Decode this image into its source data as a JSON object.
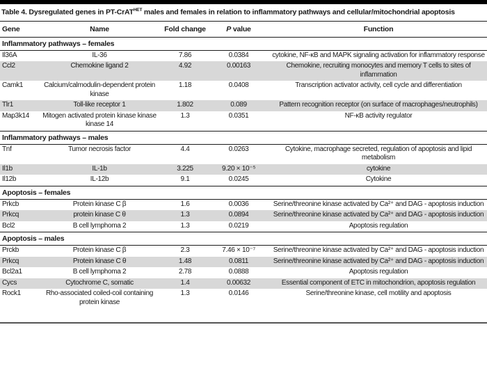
{
  "table": {
    "title": {
      "prefix": "Table 4. Dysregulated genes in PT-CrAT",
      "superscript": "HET",
      "suffix": " males and females in relation to inflammatory pathways and cellular/mitochondrial apoptosis"
    },
    "columns": {
      "gene": "Gene",
      "name": "Name",
      "fold": "Fold change",
      "p_italic": "P",
      "p_rest": " value",
      "function": "Function"
    },
    "colors": {
      "shaded_row": "#d8d8d8",
      "top_bar": "#000000",
      "rule": "#1a1a1a"
    },
    "sections": [
      {
        "label": "Inflammatory pathways – females",
        "rows": [
          {
            "gene": "Il36A",
            "name": "IL-36",
            "fold": "7.86",
            "p": "0.0384",
            "func": "cytokine, NF-κB and MAPK signaling activation for inflammatory response"
          },
          {
            "gene": "Ccl2",
            "name": "Chemokine ligand 2",
            "fold": "4.92",
            "p": "0.00163",
            "func": "Chemokine, recruiting monocytes and memory T cells to sites of inflammation"
          },
          {
            "gene": "Camk1",
            "name": "Calcium/calmodulin-dependent protein kinase",
            "fold": "1.18",
            "p": "0.0408",
            "func": "Transcription activator activity, cell cycle and differentiation"
          },
          {
            "gene": "Tlr1",
            "name": "Toll-like receptor 1",
            "fold": "1.802",
            "p": "0.089",
            "func": "Pattern recognition receptor (on surface of macrophages/neutrophils)"
          },
          {
            "gene": "Map3k14",
            "name": "Mitogen activated protein kinase kinase kinase 14",
            "fold": "1.3",
            "p": "0.0351",
            "func": "NF-κB activity regulator"
          }
        ]
      },
      {
        "label": "Inflammatory pathways – males",
        "rows": [
          {
            "gene": "Tnf",
            "name": "Tumor necrosis factor",
            "fold": "4.4",
            "p": "0.0263",
            "func": "Cytokine, macrophage secreted, regulation of apoptosis and lipid metabolism"
          },
          {
            "gene": "Il1b",
            "name": "IL-1b",
            "fold": "3.225",
            "p": "9.20 × 10⁻⁵",
            "func": "cytokine"
          },
          {
            "gene": "Il12b",
            "name": "IL-12b",
            "fold": "9.1",
            "p": "0.0245",
            "func": "Cytokine"
          }
        ]
      },
      {
        "label": "Apoptosis – females",
        "rows": [
          {
            "gene": "Prkcb",
            "name": "Protein kinase C β",
            "fold": "1.6",
            "p": "0.0036",
            "func": "Serine/threonine kinase activated by Ca²⁺ and DAG - apoptosis induction"
          },
          {
            "gene": "Prkcq",
            "name": "protein kinase C θ",
            "fold": "1.3",
            "p": "0.0894",
            "func": "Serine/threonine kinase activated by Ca²⁺ and DAG - apoptosis induction"
          },
          {
            "gene": "Bcl2",
            "name": "B cell lymphoma 2",
            "fold": "1.3",
            "p": "0.0219",
            "func": "Apoptosis regulation"
          }
        ]
      },
      {
        "label": "Apoptosis – males",
        "rows": [
          {
            "gene": "Prckb",
            "name": "Protein kinase C β",
            "fold": "2.3",
            "p": "7.46 × 10⁻⁷",
            "func": "Serine/threonine kinase activated by Ca²⁺ and DAG - apoptosis induction"
          },
          {
            "gene": "Prkcq",
            "name": "Protein kinase C θ",
            "fold": "1.48",
            "p": "0.0811",
            "func": "Serine/threonine kinase activated by Ca²⁺ and DAG - apoptosis induction"
          },
          {
            "gene": "Bcl2a1",
            "name": "B cell lymphoma 2",
            "fold": "2.78",
            "p": "0.0888",
            "func": "Apoptosis regulation"
          },
          {
            "gene": "Cycs",
            "name": "Cytochrome C, somatic",
            "fold": "1.4",
            "p": "0.00632",
            "func": "Essential component of ETC in mitochondrion, apoptosis regulation"
          },
          {
            "gene": "Rock1",
            "name": "Rho-associated coiled-coil containing protein kinase",
            "fold": "1.3",
            "p": "0.0146",
            "func": "Serine/threonine kinase, cell motility and apoptosis"
          }
        ]
      }
    ]
  }
}
